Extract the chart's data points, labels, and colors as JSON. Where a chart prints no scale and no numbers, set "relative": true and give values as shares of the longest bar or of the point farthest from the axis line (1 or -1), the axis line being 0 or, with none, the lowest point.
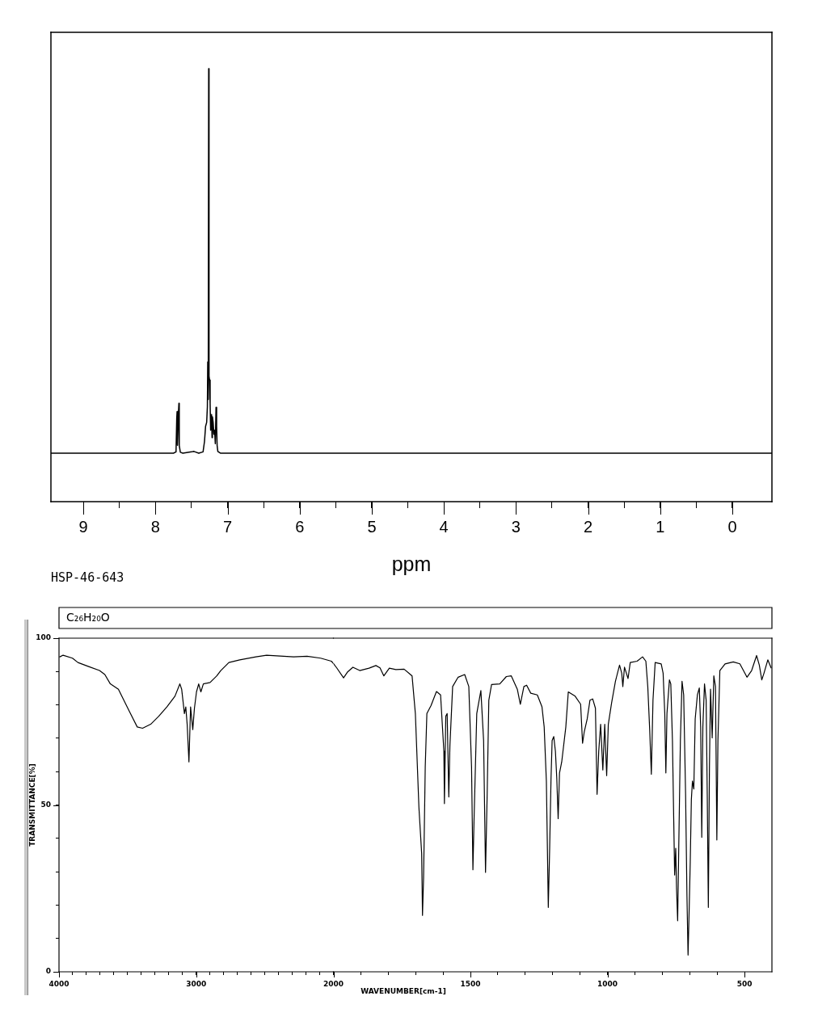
{
  "chart_data": [
    {
      "type": "line",
      "xlabel": "ppm",
      "annotations": [
        "HSP-46-643"
      ],
      "relative": true,
      "color": "#000000",
      "x": [
        9.45,
        7.75,
        7.715,
        7.705,
        7.7,
        7.695,
        7.685,
        7.675,
        7.67,
        7.655,
        7.62,
        7.5,
        7.47,
        7.45,
        7.4,
        7.34,
        7.32,
        7.305,
        7.29,
        7.28,
        7.275,
        7.268,
        7.262,
        7.257,
        7.25,
        7.242,
        7.235,
        7.23,
        7.222,
        7.215,
        7.21,
        7.2,
        7.19,
        7.18,
        7.17,
        7.16,
        7.152,
        7.145,
        7.135,
        7.1,
        -0.55
      ],
      "values": [
        0.112,
        0.112,
        0.115,
        0.192,
        0.208,
        0.13,
        0.192,
        0.227,
        0.13,
        0.114,
        0.112,
        0.115,
        0.116,
        0.115,
        0.112,
        0.115,
        0.139,
        0.174,
        0.183,
        0.219,
        0.323,
        0.236,
        1,
        0.29,
        0.281,
        0.227,
        0.165,
        0.201,
        0.192,
        0.148,
        0.196,
        0.183,
        0.156,
        0.165,
        0.134,
        0.218,
        0.174,
        0.13,
        0.116,
        0.112,
        0.112
      ],
      "xlim": [
        9.45,
        -0.55
      ],
      "xticks": [
        9,
        {
          "value": 8.5,
          "label": null
        },
        8,
        {
          "value": 7.5,
          "label": null
        },
        7,
        {
          "value": 6.5,
          "label": null
        },
        6,
        {
          "value": 5.5,
          "label": null
        },
        5,
        {
          "value": 4.5,
          "label": null
        },
        4,
        {
          "value": 3.5,
          "label": null
        },
        3,
        {
          "value": 2.5,
          "label": null
        },
        2,
        {
          "value": 1.5,
          "label": null
        },
        1,
        {
          "value": 0.5,
          "label": null
        },
        0
      ]
    },
    {
      "type": "line",
      "title": "C₂₆H₂₀O",
      "ylabel": "TRANSMITTANCE[%]",
      "color": "#000000",
      "x": [
        3994,
        3970,
        3902,
        3862,
        3784,
        3705,
        3666,
        3626,
        3567,
        3489,
        3430,
        3391,
        3332,
        3273,
        3214,
        3155,
        3119,
        3106,
        3086,
        3076,
        3066,
        3053,
        3041,
        3025,
        3013,
        2998,
        2982,
        2966,
        2948,
        2899,
        2850,
        2821,
        2762,
        2683,
        2565,
        2487,
        2290,
        2192,
        2093,
        2015,
        2000
      ],
      "values": [
        94.4,
        94.9,
        94,
        92.7,
        91.5,
        90.3,
        89.1,
        86.3,
        84.7,
        78.2,
        73.4,
        73,
        74.2,
        76.6,
        79.4,
        82.6,
        86.3,
        84.7,
        77.4,
        79.4,
        74.2,
        62.9,
        79.4,
        72.6,
        79,
        83.9,
        86.3,
        83.9,
        86.3,
        86.7,
        88.7,
        90.3,
        92.7,
        93.5,
        94.4,
        94.9,
        94.4,
        94.6,
        94,
        93.1,
        92.4
      ],
      "xlim": [
        4000,
        2000
      ],
      "xticks": [
        4000,
        {
          "value": 3900,
          "label": null
        },
        {
          "value": 3800,
          "label": null
        },
        {
          "value": 3700,
          "label": null
        },
        {
          "value": 3600,
          "label": null
        },
        {
          "value": 3500,
          "label": null
        },
        {
          "value": 3400,
          "label": null
        },
        {
          "value": 3300,
          "label": null
        },
        {
          "value": 3200,
          "label": null
        },
        {
          "value": 3100,
          "label": null
        },
        3000,
        {
          "value": 2900,
          "label": null
        },
        {
          "value": 2800,
          "label": null
        },
        {
          "value": 2700,
          "label": null
        },
        {
          "value": 2600,
          "label": null
        },
        {
          "value": 2500,
          "label": null
        },
        {
          "value": 2400,
          "label": null
        },
        {
          "value": 2300,
          "label": null
        },
        {
          "value": 2200,
          "label": null
        },
        {
          "value": 2100,
          "label": null
        }
      ],
      "ylim": [
        0,
        100
      ],
      "yticks": [
        0,
        {
          "value": 10,
          "label": null
        },
        {
          "value": 20,
          "label": null
        },
        {
          "value": 30,
          "label": null
        },
        {
          "value": 40,
          "label": null
        },
        50,
        {
          "value": 60,
          "label": null
        },
        {
          "value": 70,
          "label": null
        },
        {
          "value": 80,
          "label": null
        },
        {
          "value": 90,
          "label": null
        },
        100
      ]
    },
    {
      "type": "line",
      "xlabel": "WAVENUMBER[cm-1]",
      "color": "#000000",
      "tick_labels": "x",
      "x": [
        2000,
        1988,
        1963,
        1948,
        1929,
        1904,
        1870,
        1845,
        1830,
        1816,
        1796,
        1772,
        1742,
        1713,
        1701,
        1688,
        1678,
        1675,
        1671,
        1665,
        1659,
        1644,
        1624,
        1609,
        1597,
        1595,
        1590,
        1585,
        1579,
        1575,
        1565,
        1545,
        1521,
        1506,
        1496,
        1491,
        1487,
        1477,
        1462,
        1452,
        1445,
        1439,
        1433,
        1423,
        1393,
        1369,
        1351,
        1329,
        1318,
        1305,
        1295,
        1280,
        1256,
        1239,
        1231,
        1223,
        1216,
        1211,
        1206,
        1202,
        1196,
        1190,
        1185,
        1180,
        1175,
        1167,
        1152,
        1143,
        1118,
        1098,
        1091,
        1085,
        1074,
        1064,
        1054,
        1044,
        1038,
        1032,
        1025,
        1017,
        1010,
        1003,
        997,
        985,
        971,
        956,
        948,
        944,
        938,
        931,
        925,
        917,
        892,
        872,
        860,
        853,
        846,
        840,
        834,
        826,
        804,
        797,
        791,
        787,
        783,
        774,
        769,
        763,
        755,
        751,
        748,
        744,
        740,
        734,
        728,
        722,
        715,
        710,
        706,
        702,
        698,
        694,
        690,
        685,
        680,
        672,
        665,
        660,
        656,
        652,
        646,
        640,
        636,
        632,
        628,
        624,
        618,
        612,
        606,
        601,
        597,
        590,
        571,
        541,
        517,
        491,
        474,
        456,
        446,
        437,
        429,
        415,
        403
      ],
      "values": [
        92.4,
        91.1,
        88.1,
        89.9,
        91.3,
        90.3,
        91,
        91.8,
        91.1,
        88.7,
        91,
        90.6,
        90.7,
        88.7,
        77.4,
        49.2,
        35.4,
        16.9,
        28.2,
        61.3,
        77.4,
        79.8,
        84,
        83,
        66.1,
        50.4,
        76.6,
        77.4,
        52.4,
        67.7,
        85.5,
        88.3,
        89.1,
        85.5,
        61.3,
        30.6,
        45.1,
        77.4,
        84.3,
        69.3,
        29.8,
        53.2,
        81.4,
        86.1,
        86.3,
        88.5,
        88.7,
        84.7,
        80.2,
        85.5,
        85.9,
        83.5,
        83,
        79.4,
        73.4,
        57.2,
        19.3,
        37,
        58,
        69.3,
        70.5,
        66.1,
        58,
        45.9,
        59.6,
        62.9,
        73.4,
        83.9,
        82.6,
        80.2,
        68.5,
        71.8,
        75.8,
        81.4,
        81.8,
        79,
        53.2,
        66.1,
        74.2,
        60.5,
        74.2,
        58.8,
        74.2,
        80.6,
        87.1,
        91.9,
        89.5,
        85.5,
        91.3,
        89.5,
        87.9,
        92.7,
        93.1,
        94.4,
        93.1,
        85.5,
        72.6,
        59.2,
        81.4,
        92.7,
        92.3,
        89.5,
        77.4,
        59.6,
        77.4,
        87.5,
        86.3,
        69.3,
        29,
        37,
        24.9,
        15.3,
        37,
        69.3,
        87.1,
        83,
        53.2,
        22.5,
        5,
        18.5,
        33,
        51.6,
        57.2,
        54.8,
        75.8,
        83,
        85.1,
        73.4,
        40.3,
        73.4,
        86.3,
        81.4,
        53.2,
        19.3,
        61.3,
        84.7,
        70.1,
        88.7,
        85.5,
        39.5,
        69.3,
        90.3,
        92.3,
        92.9,
        92.3,
        88.3,
        90.3,
        94.8,
        91.9,
        87.5,
        89.5,
        93.5,
        91.1
      ],
      "xlim": [
        2000,
        400
      ],
      "xticks": [
        2000,
        {
          "value": 1900,
          "label": null
        },
        {
          "value": 1800,
          "label": null
        },
        {
          "value": 1700,
          "label": null
        },
        {
          "value": 1600,
          "label": null
        },
        1500,
        {
          "value": 1400,
          "label": null
        },
        {
          "value": 1300,
          "label": null
        },
        {
          "value": 1200,
          "label": null
        },
        {
          "value": 1100,
          "label": null
        },
        1000,
        {
          "value": 900,
          "label": null
        },
        {
          "value": 800,
          "label": null
        },
        {
          "value": 700,
          "label": null
        },
        {
          "value": 600,
          "label": null
        },
        500
      ],
      "ylim": [
        0,
        100
      ]
    }
  ]
}
